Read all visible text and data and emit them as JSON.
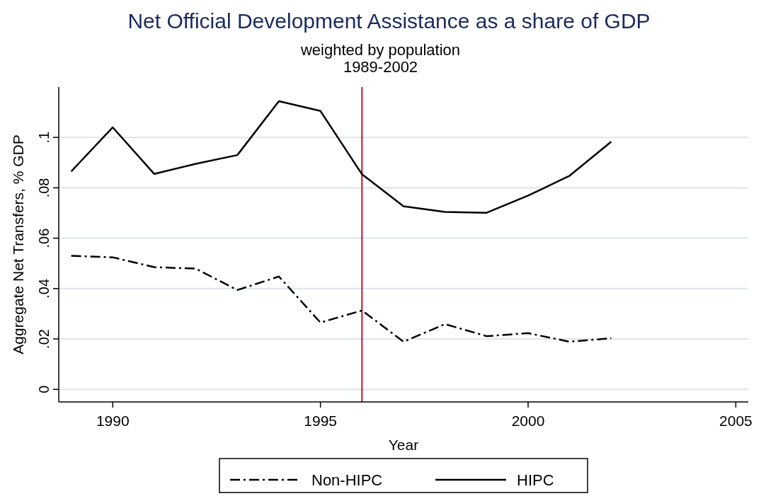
{
  "chart_data": {
    "type": "line",
    "title": "Net Official Development Assistance as a share of GDP",
    "subtitle": "weighted by population\n1989-2002",
    "xlabel": "Year",
    "ylabel": "Aggregate Net Transfers, % GDP",
    "x": [
      1989,
      1990,
      1991,
      1992,
      1993,
      1994,
      1995,
      1996,
      1997,
      1998,
      1999,
      2000,
      2001,
      2002
    ],
    "series": [
      {
        "name": "Non-HIPC",
        "color": "#000000",
        "line_style": "dashdot",
        "values": [
          0.053,
          0.0524,
          0.0485,
          0.0479,
          0.0394,
          0.0448,
          0.0265,
          0.0313,
          0.0189,
          0.0259,
          0.0211,
          0.0223,
          0.0189,
          0.0203
        ]
      },
      {
        "name": "HIPC",
        "color": "#000000",
        "line_style": "solid",
        "values": [
          0.0865,
          0.104,
          0.0855,
          0.0895,
          0.093,
          0.1144,
          0.1105,
          0.0854,
          0.0727,
          0.0704,
          0.0701,
          0.0769,
          0.0848,
          0.0983
        ]
      }
    ],
    "xlim": [
      1988.7,
      2005.3
    ],
    "xticks": [
      1990,
      1995,
      2000,
      2005
    ],
    "ylim": [
      -0.005,
      0.12
    ],
    "yticks": [
      {
        "value": 0,
        "label": "0"
      },
      {
        "value": 0.02,
        "label": ".02"
      },
      {
        "value": 0.04,
        "label": ".04"
      },
      {
        "value": 0.06,
        "label": ".06"
      },
      {
        "value": 0.08,
        "label": ".08"
      },
      {
        "value": 0.1,
        "label": ".1"
      }
    ],
    "grid": "y",
    "legend": "bottom",
    "ref_lines": [
      {
        "axis": "x",
        "value": 1996,
        "color": "#c8102e"
      }
    ]
  }
}
